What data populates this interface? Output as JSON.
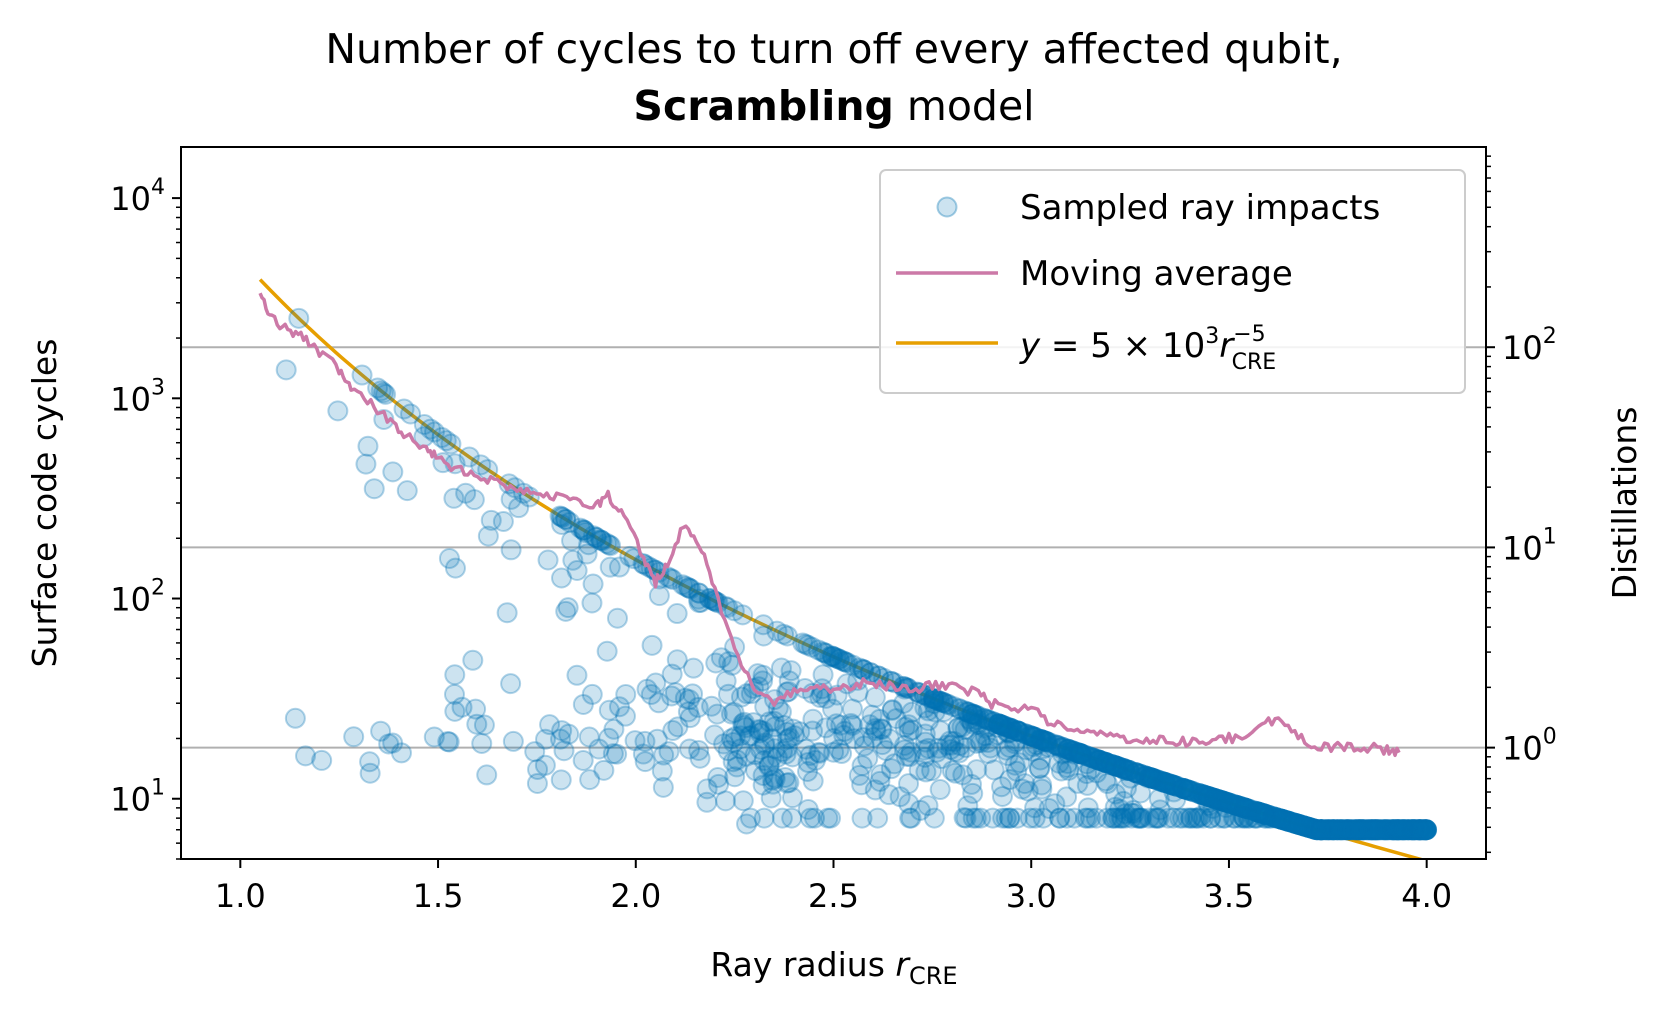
{
  "chart_data": {
    "type": "scatter",
    "title_line1": "Number of cycles to turn off every affected qubit,",
    "title_bold": "Scrambling",
    "title_rest": " model",
    "xlabel_main": "Ray radius ",
    "xlabel_var": "r",
    "xlabel_sub": "CRE",
    "ylabel": "Surface code cycles",
    "y2label": "Distillations",
    "xlim": [
      0.85,
      4.15
    ],
    "ylim": [
      5,
      18000
    ],
    "y2_to_y1_factor": 18,
    "x_ticks": [
      1.0,
      1.5,
      2.0,
      2.5,
      3.0,
      3.5,
      4.0
    ],
    "x_tick_labels": [
      "1.0",
      "1.5",
      "2.0",
      "2.5",
      "3.0",
      "3.5",
      "4.0"
    ],
    "y_ticks": [
      {
        "value": 10,
        "base": "10",
        "exp": "1"
      },
      {
        "value": 100,
        "base": "10",
        "exp": "2"
      },
      {
        "value": 1000,
        "base": "10",
        "exp": "3"
      },
      {
        "value": 10000,
        "base": "10",
        "exp": "4"
      }
    ],
    "y2_ticks": [
      {
        "value": 1,
        "base": "10",
        "exp": "0"
      },
      {
        "value": 10,
        "base": "10",
        "exp": "1"
      },
      {
        "value": 100,
        "base": "10",
        "exp": "2"
      }
    ],
    "legend": {
      "position": "upper-right",
      "scatter_label": "Sampled ray impacts",
      "moving_label": "Moving average",
      "curve_label_y": "y",
      "curve_label_eq": " = 5 × 10",
      "curve_label_exp3": "3",
      "curve_label_r": "r",
      "curve_label_exp": "−5",
      "curve_label_sub": "CRE"
    },
    "colors": {
      "scatter": "#0072B2",
      "moving_average": "#CC79A7",
      "curve": "#E69F00",
      "grid": "#b0b0b0"
    },
    "curve": {
      "coefficient": 5000,
      "exponent": -5,
      "x_range": [
        1.05,
        4.0
      ]
    },
    "series": [
      {
        "name": "Sampled ray impacts",
        "type": "scatter",
        "sample_count": 1300,
        "x_range": [
          1.0,
          4.0
        ],
        "note": "points distributed with density as depicted; seed fixed"
      },
      {
        "name": "Moving average",
        "type": "line",
        "x": [
          1.05,
          1.08,
          1.12,
          1.16,
          1.2,
          1.25,
          1.28,
          1.33,
          1.38,
          1.42,
          1.47,
          1.5,
          1.55,
          1.6,
          1.65,
          1.7,
          1.75,
          1.8,
          1.85,
          1.9,
          1.93,
          1.97,
          2.02,
          2.05,
          2.08,
          2.12,
          2.16,
          2.2,
          2.25,
          2.3,
          2.35,
          2.4,
          2.45,
          2.5,
          2.55,
          2.6,
          2.65,
          2.7,
          2.75,
          2.8,
          2.86,
          2.9,
          2.95,
          3.0,
          3.05,
          3.1,
          3.15,
          3.2,
          3.25,
          3.3,
          3.35,
          3.4,
          3.45,
          3.5,
          3.55,
          3.6,
          3.65,
          3.7,
          3.75,
          3.8,
          3.85,
          3.9,
          3.93
        ],
        "y": [
          3300,
          2500,
          2200,
          2000,
          1700,
          1400,
          1100,
          950,
          750,
          650,
          550,
          500,
          440,
          420,
          380,
          360,
          340,
          320,
          300,
          290,
          330,
          260,
          160,
          120,
          150,
          230,
          190,
          110,
          55,
          36,
          30,
          34,
          36,
          35,
          37,
          38,
          36,
          35,
          37,
          36,
          34,
          30,
          28,
          29,
          24,
          22,
          21,
          21,
          20,
          19.5,
          19.5,
          19,
          19.5,
          20,
          21,
          25,
          23,
          19,
          18,
          18.5,
          18,
          17.5,
          17
        ]
      },
      {
        "name": "y = 5 × 10^3 r_CRE^-5",
        "type": "line",
        "formula": "5000 * x^-5"
      }
    ]
  }
}
